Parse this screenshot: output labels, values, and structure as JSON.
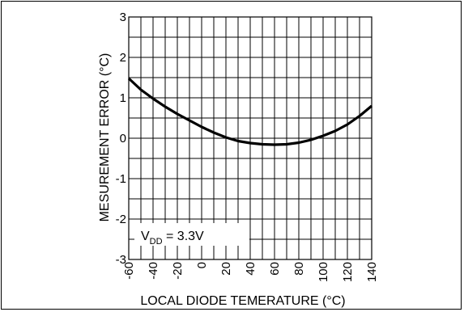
{
  "chart_data": {
    "type": "line",
    "xlabel": "LOCAL DIODE TEMERATURE (°C)",
    "ylabel": "MESUREMENT ERROR (°C)",
    "xlim": [
      -60,
      140
    ],
    "ylim": [
      -3,
      3
    ],
    "x_ticks": [
      -60,
      -40,
      -20,
      0,
      20,
      40,
      60,
      80,
      100,
      120,
      140
    ],
    "x_tick_labels": [
      "-60",
      "-40",
      "-20",
      "0",
      "20",
      "40",
      "60",
      "80",
      "100",
      "120",
      "140"
    ],
    "y_ticks": [
      3,
      2,
      1,
      0,
      -1,
      -2,
      -3
    ],
    "y_tick_labels": [
      "3",
      "2",
      "1",
      "0",
      "-1",
      "-2",
      "-3"
    ],
    "x_minor_step": 10,
    "y_minor_step": 0.5,
    "grid": true,
    "annotation": {
      "prefix": "V",
      "subscript": "DD",
      "suffix": " = 3.3V"
    },
    "series": [
      {
        "x": [
          -60,
          -50,
          -40,
          -30,
          -20,
          -10,
          0,
          10,
          20,
          30,
          40,
          50,
          60,
          70,
          80,
          90,
          100,
          110,
          120,
          130,
          140
        ],
        "y": [
          1.48,
          1.2,
          0.98,
          0.78,
          0.6,
          0.44,
          0.28,
          0.14,
          0.02,
          -0.07,
          -0.12,
          -0.15,
          -0.16,
          -0.15,
          -0.11,
          -0.04,
          0.06,
          0.18,
          0.34,
          0.55,
          0.8
        ]
      }
    ]
  }
}
